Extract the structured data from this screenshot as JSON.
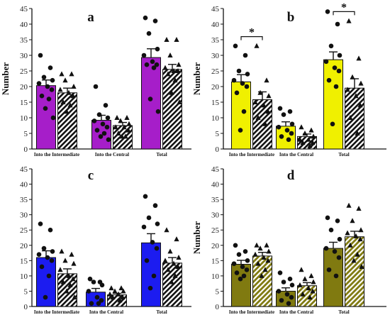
{
  "chart_data": [
    {
      "type": "bar",
      "panel_label": "a",
      "ylabel": "Number",
      "ylim": [
        0,
        45
      ],
      "yticks": [
        0,
        5,
        10,
        15,
        20,
        25,
        30,
        35,
        40,
        45
      ],
      "categories": [
        "Into the Intermediate",
        "Into the Central",
        "Total"
      ],
      "series": [
        {
          "color": "#a61ec9",
          "pattern": "solid",
          "values": [
            20.3,
            9.2,
            29.3
          ],
          "errors": [
            1.8,
            1.6,
            2.8
          ],
          "points": [
            [
              30,
              26,
              23,
              22,
              21,
              20,
              19,
              17,
              16,
              13,
              10
            ],
            [
              20,
              14,
              11,
              10,
              9,
              8,
              7,
              6,
              5,
              4,
              3
            ],
            [
              42,
              41,
              37,
              32,
              30,
              28,
              27,
              27,
              26,
              16,
              12
            ]
          ]
        },
        {
          "color": "#111111",
          "pattern": "hatch",
          "values": [
            18.0,
            7.5,
            25.5
          ],
          "errors": [
            1.5,
            1.0,
            1.6
          ],
          "points": [
            [
              24,
              24,
              22,
              20,
              19,
              18,
              17,
              15,
              14,
              12
            ],
            [
              10,
              10,
              9,
              8,
              7,
              7,
              6,
              5,
              4,
              4
            ],
            [
              35,
              35,
              30,
              27,
              26,
              25,
              25,
              24,
              22,
              18,
              15
            ]
          ]
        }
      ],
      "significance": []
    },
    {
      "type": "bar",
      "panel_label": "b",
      "ylabel": "Number",
      "ylim": [
        0,
        45
      ],
      "yticks": [
        0,
        5,
        10,
        15,
        20,
        25,
        30,
        35,
        40,
        45
      ],
      "categories": [
        "Into the Intermediate",
        "Into the Central",
        "Total"
      ],
      "series": [
        {
          "color": "#f0f000",
          "pattern": "solid",
          "values": [
            21.5,
            7.3,
            28.6
          ],
          "errors": [
            2.3,
            1.4,
            2.5
          ],
          "points": [
            [
              33,
              30,
              25,
              24,
              22,
              21,
              20,
              18,
              12,
              6
            ],
            [
              13,
              12,
              11,
              8,
              7,
              6,
              5,
              4,
              3
            ],
            [
              44,
              40,
              33,
              30,
              28,
              26,
              25,
              22,
              20,
              8
            ]
          ]
        },
        {
          "color": "#111111",
          "pattern": "hatch",
          "values": [
            15.8,
            4.0,
            19.5
          ],
          "errors": [
            2.5,
            0.8,
            3.0
          ],
          "points": [
            [
              33,
              22,
              18,
              17,
              15,
              14,
              12,
              10,
              8
            ],
            [
              7,
              6,
              5,
              4,
              3,
              3,
              2,
              2,
              1
            ],
            [
              41,
              29,
              23,
              21,
              19,
              17,
              14,
              10,
              5
            ]
          ]
        }
      ],
      "significance": [
        {
          "category": "Into the Intermediate",
          "label": "*"
        },
        {
          "category": "Total",
          "label": "*"
        }
      ]
    },
    {
      "type": "bar",
      "panel_label": "c",
      "ylabel": "",
      "ylim": [
        0,
        45
      ],
      "yticks": [
        0,
        5,
        10,
        15,
        20,
        25,
        30,
        35,
        40,
        45
      ],
      "categories": [
        "Into the Intermediate",
        "Into the Central",
        "Total"
      ],
      "series": [
        {
          "color": "#1c1cf0",
          "pattern": "solid",
          "values": [
            16.0,
            4.7,
            20.8
          ],
          "errors": [
            2.2,
            1.2,
            3.0
          ],
          "points": [
            [
              27,
              25,
              19,
              18,
              17,
              16,
              15,
              13,
              10,
              3
            ],
            [
              9,
              8,
              8,
              7,
              5,
              3,
              2,
              1,
              1
            ],
            [
              36,
              33,
              29,
              27,
              26,
              21,
              19,
              15,
              10,
              6
            ]
          ]
        },
        {
          "color": "#111111",
          "pattern": "hatch",
          "values": [
            10.7,
            3.8,
            14.2
          ],
          "errors": [
            1.6,
            0.5,
            1.8
          ],
          "points": [
            [
              18,
              17,
              15,
              14,
              12,
              10,
              9,
              8,
              7,
              5,
              3
            ],
            [
              6,
              6,
              5,
              5,
              4,
              4,
              3,
              3,
              2
            ],
            [
              25,
              22,
              18,
              16,
              15,
              14,
              13,
              12,
              10,
              8
            ]
          ]
        }
      ],
      "significance": []
    },
    {
      "type": "bar",
      "panel_label": "d",
      "ylabel": "Number",
      "ylim": [
        0,
        45
      ],
      "yticks": [
        0,
        5,
        10,
        15,
        20,
        25,
        30,
        35,
        40,
        45
      ],
      "categories": [
        "Into the Intermediate",
        "Into the Central",
        "Total"
      ],
      "series": [
        {
          "color": "#807a10",
          "pattern": "solid",
          "values": [
            13.8,
            5.0,
            19.0
          ],
          "errors": [
            1.3,
            1.1,
            2.0
          ],
          "points": [
            [
              20,
              18,
              17,
              15,
              14,
              13,
              12,
              11,
              10,
              9
            ],
            [
              11,
              9,
              8,
              7,
              5,
              4,
              3,
              2,
              1
            ],
            [
              29,
              28,
              25,
              22,
              19,
              18,
              16,
              12,
              10
            ]
          ]
        },
        {
          "color": "#807a10",
          "pattern": "hatch-olive",
          "values": [
            16.5,
            6.8,
            22.8
          ],
          "errors": [
            1.2,
            1.0,
            1.8
          ],
          "points": [
            [
              20,
              20,
              19,
              18,
              17,
              16,
              15,
              14,
              12,
              10
            ],
            [
              12,
              10,
              9,
              8,
              7,
              6,
              5,
              4,
              3
            ],
            [
              33,
              32,
              28,
              25,
              24,
              23,
              22,
              20,
              17,
              15,
              13
            ]
          ]
        }
      ],
      "significance": []
    }
  ]
}
